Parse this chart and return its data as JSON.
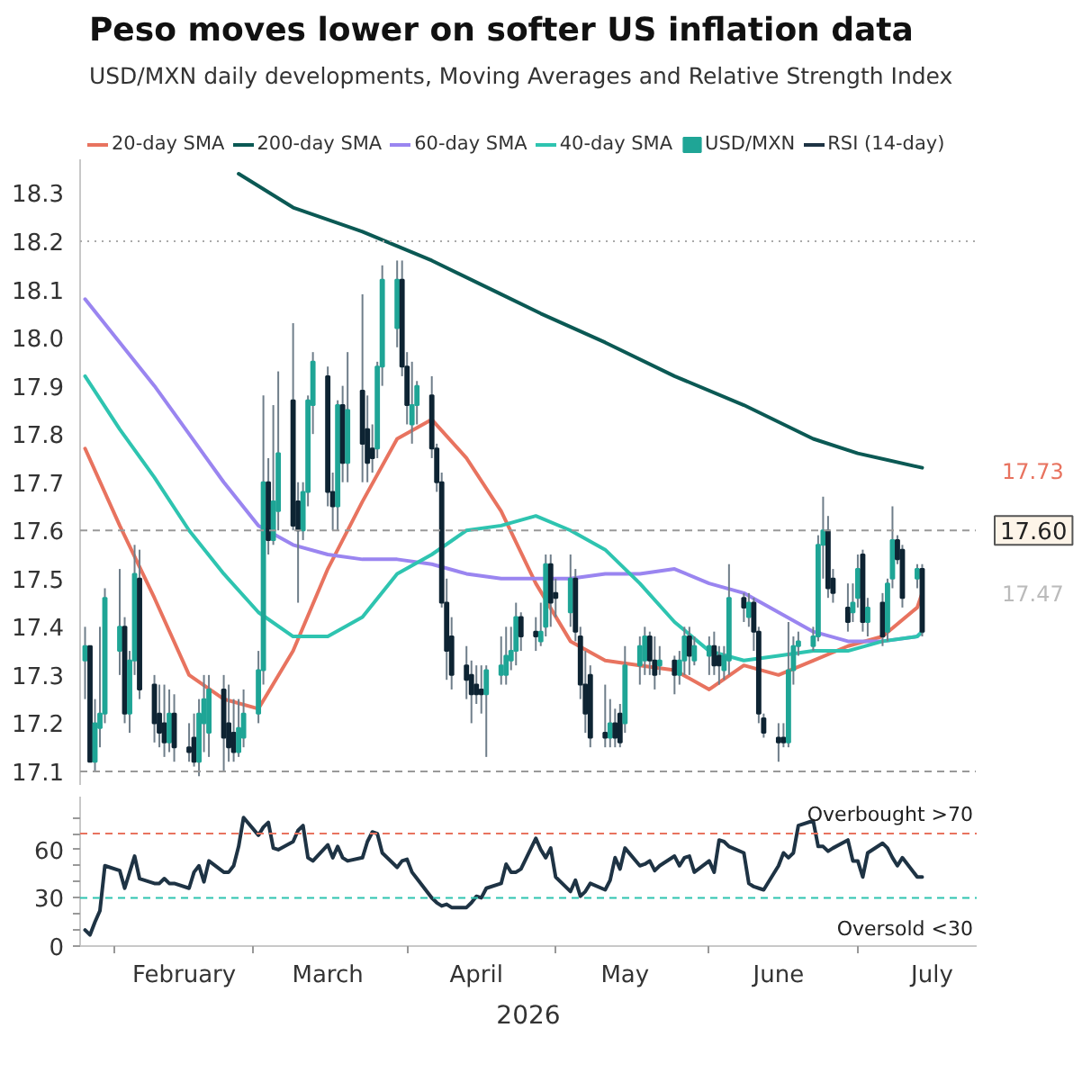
{
  "chart_data": [
    {
      "type": "candlestick",
      "title": "Peso moves lower on softer US inflation data",
      "subtitle": "USD/MXN daily developments, Moving Averages and Relative Strength Index",
      "x": [
        "2026-01-26",
        "2026-01-27",
        "2026-01-28",
        "2026-01-29",
        "2026-01-30",
        "2026-02-02",
        "2026-02-03",
        "2026-02-04",
        "2026-02-05",
        "2026-02-06",
        "2026-02-09",
        "2026-02-10",
        "2026-02-11",
        "2026-02-12",
        "2026-02-13",
        "2026-02-16",
        "2026-02-17",
        "2026-02-18",
        "2026-02-19",
        "2026-02-20",
        "2026-02-23",
        "2026-02-24",
        "2026-02-25",
        "2026-02-26",
        "2026-02-27",
        "2026-03-02",
        "2026-03-03",
        "2026-03-04",
        "2026-03-05",
        "2026-03-06",
        "2026-03-09",
        "2026-03-10",
        "2026-03-11",
        "2026-03-12",
        "2026-03-13",
        "2026-03-16",
        "2026-03-17",
        "2026-03-18",
        "2026-03-19",
        "2026-03-20",
        "2026-03-23",
        "2026-03-24",
        "2026-03-25",
        "2026-03-26",
        "2026-03-27",
        "2026-03-30",
        "2026-03-31",
        "2026-04-01",
        "2026-04-02",
        "2026-04-03",
        "2026-04-06",
        "2026-04-07",
        "2026-04-08",
        "2026-04-09",
        "2026-04-10",
        "2026-04-13",
        "2026-04-14",
        "2026-04-15",
        "2026-04-16",
        "2026-04-17",
        "2026-04-20",
        "2026-04-21",
        "2026-04-22",
        "2026-04-23",
        "2026-04-24",
        "2026-04-27",
        "2026-04-28",
        "2026-04-29",
        "2026-04-30",
        "2026-05-01",
        "2026-05-04",
        "2026-05-05",
        "2026-05-06",
        "2026-05-07",
        "2026-05-08",
        "2026-05-11",
        "2026-05-12",
        "2026-05-13",
        "2026-05-14",
        "2026-05-15",
        "2026-05-18",
        "2026-05-19",
        "2026-05-20",
        "2026-05-21",
        "2026-05-22",
        "2026-05-25",
        "2026-05-26",
        "2026-05-27",
        "2026-05-28",
        "2026-05-29",
        "2026-06-01",
        "2026-06-02",
        "2026-06-03",
        "2026-06-04",
        "2026-06-05",
        "2026-06-08",
        "2026-06-09",
        "2026-06-10",
        "2026-06-11",
        "2026-06-12",
        "2026-06-15",
        "2026-06-16",
        "2026-06-17",
        "2026-06-18",
        "2026-06-19",
        "2026-06-22",
        "2026-06-23",
        "2026-06-24",
        "2026-06-25",
        "2026-06-26",
        "2026-06-29",
        "2026-06-30",
        "2026-07-01",
        "2026-07-02",
        "2026-07-03",
        "2026-07-06",
        "2026-07-07",
        "2026-07-08",
        "2026-07-09",
        "2026-07-10",
        "2026-07-13",
        "2026-07-14"
      ],
      "series": [
        {
          "name": "20-day SMA",
          "type": "line",
          "color": "#e8735f",
          "x": [
            "2026-01-26",
            "2026-02-02",
            "2026-02-09",
            "2026-02-16",
            "2026-02-23",
            "2026-03-02",
            "2026-03-09",
            "2026-03-16",
            "2026-03-23",
            "2026-03-30",
            "2026-04-06",
            "2026-04-13",
            "2026-04-20",
            "2026-04-27",
            "2026-05-04",
            "2026-05-11",
            "2026-05-18",
            "2026-05-25",
            "2026-06-01",
            "2026-06-08",
            "2026-06-15",
            "2026-06-22",
            "2026-06-29",
            "2026-07-06",
            "2026-07-13",
            "2026-07-14"
          ],
          "values": [
            17.77,
            17.61,
            17.46,
            17.3,
            17.25,
            17.23,
            17.35,
            17.52,
            17.66,
            17.79,
            17.83,
            17.75,
            17.64,
            17.49,
            17.37,
            17.33,
            17.32,
            17.31,
            17.27,
            17.32,
            17.3,
            17.33,
            17.36,
            17.38,
            17.44,
            17.47
          ]
        },
        {
          "name": "200-day SMA",
          "type": "line",
          "color": "#0b5954",
          "x": [
            "2026-02-26",
            "2026-03-09",
            "2026-03-23",
            "2026-04-06",
            "2026-04-20",
            "2026-04-28",
            "2026-05-11",
            "2026-05-25",
            "2026-06-08",
            "2026-06-22",
            "2026-07-01",
            "2026-07-14"
          ],
          "values": [
            18.34,
            18.27,
            18.22,
            18.16,
            18.09,
            18.05,
            17.99,
            17.92,
            17.86,
            17.79,
            17.76,
            17.73
          ]
        },
        {
          "name": "60-day SMA",
          "type": "line",
          "color": "#9a85f0",
          "x": [
            "2026-01-26",
            "2026-02-02",
            "2026-02-09",
            "2026-02-16",
            "2026-02-23",
            "2026-03-02",
            "2026-03-09",
            "2026-03-16",
            "2026-03-23",
            "2026-03-30",
            "2026-04-06",
            "2026-04-13",
            "2026-04-20",
            "2026-04-27",
            "2026-05-04",
            "2026-05-11",
            "2026-05-18",
            "2026-05-25",
            "2026-06-01",
            "2026-06-08",
            "2026-06-15",
            "2026-06-22",
            "2026-06-29",
            "2026-07-06",
            "2026-07-13",
            "2026-07-14"
          ],
          "values": [
            18.08,
            17.99,
            17.9,
            17.8,
            17.7,
            17.61,
            17.57,
            17.55,
            17.54,
            17.54,
            17.53,
            17.51,
            17.5,
            17.5,
            17.5,
            17.51,
            17.51,
            17.52,
            17.49,
            17.47,
            17.43,
            17.39,
            17.37,
            17.37,
            17.38,
            17.39
          ]
        },
        {
          "name": "40-day SMA",
          "type": "line",
          "color": "#2ec4b0",
          "x": [
            "2026-01-26",
            "2026-02-02",
            "2026-02-09",
            "2026-02-16",
            "2026-02-23",
            "2026-03-02",
            "2026-03-09",
            "2026-03-16",
            "2026-03-23",
            "2026-03-30",
            "2026-04-06",
            "2026-04-13",
            "2026-04-20",
            "2026-04-27",
            "2026-05-04",
            "2026-05-11",
            "2026-05-18",
            "2026-05-25",
            "2026-06-01",
            "2026-06-08",
            "2026-06-15",
            "2026-06-22",
            "2026-06-29",
            "2026-07-06",
            "2026-07-13",
            "2026-07-14"
          ],
          "values": [
            17.92,
            17.81,
            17.71,
            17.6,
            17.51,
            17.43,
            17.38,
            17.38,
            17.42,
            17.51,
            17.55,
            17.6,
            17.61,
            17.63,
            17.6,
            17.56,
            17.49,
            17.41,
            17.35,
            17.33,
            17.34,
            17.35,
            17.35,
            17.37,
            17.38,
            17.39
          ]
        },
        {
          "name": "USD/MXN",
          "type": "candlestick",
          "colors": [
            "#1fa596",
            "#0e2433",
            "#1fa596",
            "#1fa596",
            "#1fa596",
            "#1fa596",
            "#0e2433",
            "#1fa596",
            "#1fa596",
            "#0e2433",
            "#0e2433",
            "#0e2433",
            "#0e2433",
            "#1fa596",
            "#0e2433",
            "#0e2433",
            "#0e2433",
            "#1fa596",
            "#1fa596",
            "#1fa596",
            "#0e2433",
            "#0e2433",
            "#0e2433",
            "#1fa596",
            "#1fa596",
            "#1fa596",
            "#1fa596",
            "#0e2433",
            "#1fa596",
            "#1fa596",
            "#0e2433",
            "#0e2433",
            "#1fa596",
            "#1fa596",
            "#1fa596",
            "#0e2433",
            "#0e2433",
            "#1fa596",
            "#0e2433",
            "#1fa596",
            "#0e2433",
            "#0e2433",
            "#0e2433",
            "#1fa596",
            "#1fa596",
            "#1fa596",
            "#0e2433",
            "#0e2433",
            "#1fa596",
            "#1fa596",
            "#0e2433",
            "#0e2433",
            "#0e2433",
            "#0e2433",
            "#0e2433",
            "#0e2433",
            "#0e2433",
            "#0e2433",
            "#0e2433",
            "#1fa596",
            "#1fa596",
            "#1fa596",
            "#1fa596",
            "#1fa596",
            "#0e2433",
            "#0e2433",
            "#1fa596",
            "#1fa596",
            "#0e2433",
            "#0e2433",
            "#1fa596",
            "#0e2433",
            "#0e2433",
            "#0e2433",
            "#0e2433",
            "#0e2433",
            "#1fa596",
            "#0e2433",
            "#0e2433",
            "#1fa596",
            "#1fa596",
            "#1fa596",
            "#0e2433",
            "#0e2433",
            "#1fa596",
            "#0e2433",
            "#1fa596",
            "#1fa596",
            "#0e2433",
            "#1fa596",
            "#1fa596",
            "#0e2433",
            "#0e2433",
            "#1fa596",
            "#1fa596",
            "#0e2433",
            "#1fa596",
            "#0e2433",
            "#0e2433",
            "#0e2433",
            "#0e2433",
            "#0e2433",
            "#1fa596",
            "#1fa596",
            "#1fa596",
            "#1fa596",
            "#1fa596",
            "#1fa596",
            "#0e2433",
            "#0e2433",
            "#0e2433",
            "#1fa596",
            "#1fa596",
            "#0e2433",
            "#1fa596",
            "#0e2433",
            "#1fa596",
            "#1fa596",
            "#0e2433",
            "#0e2433",
            "#1fa596",
            "#0e2433"
          ],
          "ohlc": [
            [
              17.33,
              17.4,
              17.25,
              17.36
            ],
            [
              17.36,
              17.36,
              17.12,
              17.12
            ],
            [
              17.12,
              17.25,
              17.1,
              17.2
            ],
            [
              17.19,
              17.4,
              17.15,
              17.22
            ],
            [
              17.22,
              17.48,
              17.2,
              17.46
            ],
            [
              17.35,
              17.52,
              17.3,
              17.4
            ],
            [
              17.4,
              17.42,
              17.2,
              17.22
            ],
            [
              17.22,
              17.35,
              17.18,
              17.33
            ],
            [
              17.33,
              17.57,
              17.3,
              17.51
            ],
            [
              17.5,
              17.56,
              17.25,
              17.27
            ],
            [
              17.28,
              17.3,
              17.16,
              17.2
            ],
            [
              17.22,
              17.28,
              17.15,
              17.18
            ],
            [
              17.2,
              17.28,
              17.13,
              17.16
            ],
            [
              17.16,
              17.27,
              17.14,
              17.22
            ],
            [
              17.22,
              17.26,
              17.12,
              17.15
            ],
            [
              17.15,
              17.2,
              17.12,
              17.14
            ],
            [
              17.17,
              17.22,
              17.11,
              17.12
            ],
            [
              17.12,
              17.25,
              17.09,
              17.22
            ],
            [
              17.2,
              17.3,
              17.14,
              17.25
            ],
            [
              17.18,
              17.3,
              17.13,
              17.27
            ],
            [
              17.27,
              17.3,
              17.1,
              17.17
            ],
            [
              17.2,
              17.28,
              17.12,
              17.15
            ],
            [
              17.18,
              17.25,
              17.12,
              17.14
            ],
            [
              17.14,
              17.25,
              17.13,
              17.19
            ],
            [
              17.17,
              17.27,
              17.15,
              17.22
            ],
            [
              17.22,
              17.35,
              17.2,
              17.31
            ],
            [
              17.31,
              17.88,
              17.28,
              17.7
            ],
            [
              17.7,
              17.75,
              17.55,
              17.58
            ],
            [
              17.58,
              17.86,
              17.57,
              17.66
            ],
            [
              17.64,
              17.93,
              17.6,
              17.76
            ],
            [
              17.87,
              18.03,
              17.6,
              17.61
            ],
            [
              17.66,
              17.7,
              17.45,
              17.6
            ],
            [
              17.6,
              17.7,
              17.58,
              17.68
            ],
            [
              17.68,
              17.88,
              17.65,
              17.87
            ],
            [
              17.86,
              17.97,
              17.8,
              17.95
            ],
            [
              17.92,
              17.94,
              17.65,
              17.68
            ],
            [
              17.68,
              17.72,
              17.6,
              17.65
            ],
            [
              17.65,
              17.87,
              17.6,
              17.86
            ],
            [
              17.86,
              17.9,
              17.7,
              17.74
            ],
            [
              17.74,
              17.97,
              17.7,
              17.85
            ],
            [
              17.89,
              18.09,
              17.7,
              17.78
            ],
            [
              17.81,
              17.88,
              17.7,
              17.74
            ],
            [
              17.77,
              17.82,
              17.72,
              17.75
            ],
            [
              17.77,
              17.95,
              17.75,
              17.94
            ],
            [
              17.94,
              18.15,
              17.9,
              18.12
            ],
            [
              18.02,
              18.16,
              17.98,
              18.12
            ],
            [
              18.12,
              18.16,
              17.92,
              17.94
            ],
            [
              17.94,
              17.97,
              17.82,
              17.86
            ],
            [
              17.82,
              17.95,
              17.78,
              17.86
            ],
            [
              17.86,
              17.91,
              17.82,
              17.9
            ],
            [
              17.88,
              17.92,
              17.75,
              17.77
            ],
            [
              17.77,
              17.78,
              17.68,
              17.7
            ],
            [
              17.7,
              17.72,
              17.44,
              17.45
            ],
            [
              17.45,
              17.5,
              17.29,
              17.35
            ],
            [
              17.38,
              17.42,
              17.27,
              17.3
            ],
            [
              17.32,
              17.36,
              17.25,
              17.29
            ],
            [
              17.3,
              17.33,
              17.2,
              17.26
            ],
            [
              17.28,
              17.32,
              17.24,
              17.26
            ],
            [
              17.27,
              17.32,
              17.22,
              17.26
            ],
            [
              17.26,
              17.32,
              17.13,
              17.31
            ],
            [
              17.3,
              17.38,
              17.28,
              17.32
            ],
            [
              17.3,
              17.4,
              17.28,
              17.34
            ],
            [
              17.33,
              17.4,
              17.31,
              17.35
            ],
            [
              17.35,
              17.45,
              17.32,
              17.42
            ],
            [
              17.42,
              17.43,
              17.35,
              17.38
            ],
            [
              17.39,
              17.42,
              17.35,
              17.38
            ],
            [
              17.37,
              17.45,
              17.36,
              17.39
            ],
            [
              17.4,
              17.55,
              17.38,
              17.53
            ],
            [
              17.53,
              17.55,
              17.4,
              17.45
            ],
            [
              17.47,
              17.5,
              17.42,
              17.46
            ],
            [
              17.43,
              17.55,
              17.4,
              17.5
            ],
            [
              17.5,
              17.52,
              17.37,
              17.39
            ],
            [
              17.38,
              17.4,
              17.25,
              17.28
            ],
            [
              17.28,
              17.35,
              17.18,
              17.22
            ],
            [
              17.3,
              17.32,
              17.15,
              17.17
            ],
            [
              17.18,
              17.28,
              17.15,
              17.17
            ],
            [
              17.17,
              17.25,
              17.15,
              17.2
            ],
            [
              17.2,
              17.23,
              17.15,
              17.17
            ],
            [
              17.22,
              17.24,
              17.15,
              17.16
            ],
            [
              17.2,
              17.36,
              17.18,
              17.32
            ],
            [
              17.32,
              17.38,
              17.28,
              17.36
            ],
            [
              17.33,
              17.4,
              17.3,
              17.38
            ],
            [
              17.38,
              17.39,
              17.3,
              17.33
            ],
            [
              17.33,
              17.38,
              17.27,
              17.3
            ],
            [
              17.32,
              17.36,
              17.3,
              17.33
            ],
            [
              17.33,
              17.34,
              17.26,
              17.3
            ],
            [
              17.3,
              17.35,
              17.28,
              17.33
            ],
            [
              17.33,
              17.4,
              17.3,
              17.38
            ],
            [
              17.38,
              17.4,
              17.3,
              17.34
            ],
            [
              17.33,
              17.38,
              17.32,
              17.36
            ],
            [
              17.34,
              17.38,
              17.3,
              17.36
            ],
            [
              17.36,
              17.39,
              17.3,
              17.32
            ],
            [
              17.34,
              17.36,
              17.28,
              17.32
            ],
            [
              17.31,
              17.36,
              17.29,
              17.34
            ],
            [
              17.33,
              17.53,
              17.3,
              17.46
            ],
            [
              17.46,
              17.47,
              17.41,
              17.44
            ],
            [
              17.42,
              17.47,
              17.4,
              17.45
            ],
            [
              17.45,
              17.46,
              17.35,
              17.39
            ],
            [
              17.39,
              17.4,
              17.2,
              17.22
            ],
            [
              17.21,
              17.22,
              17.17,
              17.18
            ],
            [
              17.17,
              17.2,
              17.12,
              17.16
            ],
            [
              17.17,
              17.2,
              17.15,
              17.16
            ],
            [
              17.16,
              17.41,
              17.15,
              17.31
            ],
            [
              17.31,
              17.38,
              17.28,
              17.36
            ],
            [
              17.36,
              17.39,
              17.34,
              17.37
            ],
            [
              17.36,
              17.4,
              17.35,
              17.38
            ],
            [
              17.38,
              17.59,
              17.37,
              17.57
            ],
            [
              17.57,
              17.67,
              17.5,
              17.6
            ],
            [
              17.6,
              17.63,
              17.46,
              17.48
            ],
            [
              17.5,
              17.52,
              17.45,
              17.47
            ],
            [
              17.44,
              17.49,
              17.39,
              17.41
            ],
            [
              17.43,
              17.49,
              17.41,
              17.45
            ],
            [
              17.46,
              17.55,
              17.44,
              17.52
            ],
            [
              17.55,
              17.56,
              17.39,
              17.41
            ],
            [
              17.41,
              17.46,
              17.38,
              17.44
            ],
            [
              17.45,
              17.47,
              17.36,
              17.38
            ],
            [
              17.39,
              17.5,
              17.37,
              17.49
            ],
            [
              17.5,
              17.65,
              17.48,
              17.58
            ],
            [
              17.58,
              17.59,
              17.53,
              17.54
            ],
            [
              17.56,
              17.57,
              17.44,
              17.46
            ],
            [
              17.5,
              17.53,
              17.48,
              17.52
            ],
            [
              17.52,
              17.53,
              17.38,
              17.39
            ]
          ]
        }
      ],
      "xlim": [
        "2026-01-25",
        "2026-07-25"
      ],
      "ylim": [
        17.07,
        18.37
      ],
      "yticks": [
        17.1,
        17.2,
        17.3,
        17.4,
        17.5,
        17.6,
        17.7,
        17.8,
        17.9,
        {
          "value": 18,
          "label": "18.0"
        },
        18.1,
        18.2,
        18.3
      ],
      "ref_lines": [
        {
          "axis": "y",
          "value": 18.2,
          "color": "#aaaaaa",
          "line_style": "dotted"
        },
        {
          "axis": "y",
          "value": 17.6,
          "label": "17.60",
          "color": "#999999",
          "line_style": "dashed"
        },
        {
          "axis": "y",
          "value": 17.1,
          "color": "#999999",
          "line_style": "dashed"
        }
      ],
      "annotations": [
        "17.73",
        "17.47"
      ],
      "tick_labels": "y",
      "legend": "top"
    },
    {
      "type": "line",
      "xlabel": "2026",
      "x": [
        "2026-01-26",
        "2026-01-27",
        "2026-01-28",
        "2026-01-29",
        "2026-01-30",
        "2026-02-02",
        "2026-02-03",
        "2026-02-04",
        "2026-02-05",
        "2026-02-06",
        "2026-02-09",
        "2026-02-10",
        "2026-02-11",
        "2026-02-12",
        "2026-02-13",
        "2026-02-16",
        "2026-02-17",
        "2026-02-18",
        "2026-02-19",
        "2026-02-20",
        "2026-02-23",
        "2026-02-24",
        "2026-02-25",
        "2026-02-26",
        "2026-02-27",
        "2026-03-02",
        "2026-03-03",
        "2026-03-04",
        "2026-03-05",
        "2026-03-06",
        "2026-03-09",
        "2026-03-10",
        "2026-03-11",
        "2026-03-12",
        "2026-03-13",
        "2026-03-16",
        "2026-03-17",
        "2026-03-18",
        "2026-03-19",
        "2026-03-20",
        "2026-03-23",
        "2026-03-24",
        "2026-03-25",
        "2026-03-26",
        "2026-03-27",
        "2026-03-30",
        "2026-03-31",
        "2026-04-01",
        "2026-04-02",
        "2026-04-03",
        "2026-04-06",
        "2026-04-07",
        "2026-04-08",
        "2026-04-09",
        "2026-04-10",
        "2026-04-13",
        "2026-04-14",
        "2026-04-15",
        "2026-04-16",
        "2026-04-17",
        "2026-04-20",
        "2026-04-21",
        "2026-04-22",
        "2026-04-23",
        "2026-04-24",
        "2026-04-27",
        "2026-04-28",
        "2026-04-29",
        "2026-04-30",
        "2026-05-01",
        "2026-05-04",
        "2026-05-05",
        "2026-05-06",
        "2026-05-07",
        "2026-05-08",
        "2026-05-11",
        "2026-05-12",
        "2026-05-13",
        "2026-05-14",
        "2026-05-15",
        "2026-05-18",
        "2026-05-19",
        "2026-05-20",
        "2026-05-21",
        "2026-05-22",
        "2026-05-25",
        "2026-05-26",
        "2026-05-27",
        "2026-05-28",
        "2026-05-29",
        "2026-06-01",
        "2026-06-02",
        "2026-06-03",
        "2026-06-04",
        "2026-06-05",
        "2026-06-08",
        "2026-06-09",
        "2026-06-10",
        "2026-06-11",
        "2026-06-12",
        "2026-06-15",
        "2026-06-16",
        "2026-06-17",
        "2026-06-18",
        "2026-06-19",
        "2026-06-22",
        "2026-06-23",
        "2026-06-24",
        "2026-06-25",
        "2026-06-26",
        "2026-06-29",
        "2026-06-30",
        "2026-07-01",
        "2026-07-02",
        "2026-07-03",
        "2026-07-06",
        "2026-07-07",
        "2026-07-08",
        "2026-07-09",
        "2026-07-10",
        "2026-07-13",
        "2026-07-14"
      ],
      "series": [
        {
          "name": "RSI (14-day)",
          "color": "#1e3344",
          "values": [
            10,
            7,
            15,
            22,
            50,
            47,
            36,
            46,
            56,
            42,
            39,
            39,
            42,
            39,
            39,
            36,
            46,
            50,
            40,
            53,
            46,
            46,
            50,
            62,
            80,
            69,
            74,
            77,
            61,
            60,
            65,
            72,
            75,
            55,
            53,
            63,
            55,
            62,
            55,
            53,
            55,
            65,
            71,
            70,
            58,
            49,
            53,
            54,
            46,
            42,
            30,
            27,
            25,
            26,
            24,
            24,
            27,
            31,
            30,
            36,
            39,
            51,
            46,
            46,
            48,
            67,
            60,
            55,
            61,
            43,
            34,
            41,
            31,
            34,
            39,
            35,
            41,
            55,
            48,
            61,
            50,
            51,
            53,
            47,
            50,
            56,
            50,
            55,
            56,
            46,
            53,
            46,
            66,
            65,
            62,
            58,
            39,
            37,
            36,
            35,
            50,
            58,
            55,
            58,
            75,
            78,
            62,
            62,
            59,
            61,
            66,
            53,
            53,
            43,
            58,
            64,
            61,
            55,
            50,
            55,
            43,
            43
          ]
        }
      ],
      "xlim": [
        "2026-01-25",
        "2026-07-25"
      ],
      "ylim": [
        0,
        93
      ],
      "xticks": [
        {
          "value": "2026-02-01",
          "label": null
        },
        {
          "value": "2026-03-01",
          "label": null
        },
        {
          "value": "2026-04-01",
          "label": null
        },
        {
          "value": "2026-05-01",
          "label": null
        },
        {
          "value": "2026-06-01",
          "label": null
        },
        {
          "value": "2026-07-01",
          "label": null
        },
        {
          "value": "2026-02-15",
          "label": "February"
        },
        {
          "value": "2026-03-16",
          "label": "March"
        },
        {
          "value": "2026-04-15",
          "label": "April"
        },
        {
          "value": "2026-05-15",
          "label": "May"
        },
        {
          "value": "2026-06-15",
          "label": "June"
        },
        {
          "value": "2026-07-16",
          "label": "July"
        }
      ],
      "yticks": [
        0,
        30,
        60,
        {
          "value": 10,
          "label": null
        },
        {
          "value": 20,
          "label": null
        },
        {
          "value": 40,
          "label": null
        },
        {
          "value": 50,
          "label": null
        },
        {
          "value": 70,
          "label": null
        },
        {
          "value": 80,
          "label": null
        }
      ],
      "ref_lines": [
        {
          "axis": "y",
          "value": 70,
          "label": "Overbought >70",
          "color": "#e8735f",
          "line_style": "dashed"
        },
        {
          "axis": "y",
          "value": 30,
          "label": "Oversold <30",
          "color": "#2ec4b0",
          "line_style": "dashed"
        }
      ],
      "legend": "top"
    }
  ]
}
